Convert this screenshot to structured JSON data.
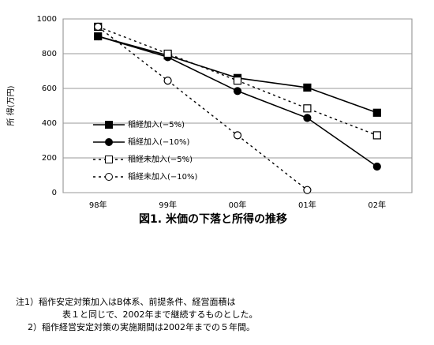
{
  "chart_data": {
    "type": "line",
    "title": "図1. 米価の下落と所得の推移",
    "y_label": "所 得(万円)",
    "categories": [
      "98年",
      "99年",
      "00年",
      "01年",
      "02年"
    ],
    "series": [
      {
        "name": "稲経加入(−5%)",
        "color": "#000000",
        "marker": "square",
        "filled": true,
        "line_style": "solid",
        "values": [
          900,
          790,
          660,
          605,
          460
        ]
      },
      {
        "name": "稲経加入(−10%)",
        "color": "#000000",
        "marker": "circle",
        "filled": true,
        "line_style": "solid",
        "values": [
          900,
          780,
          585,
          430,
          150
        ]
      },
      {
        "name": "稲経未加入(−5%)",
        "color": "#000000",
        "marker": "square",
        "filled": false,
        "line_style": "dotted",
        "values": [
          955,
          800,
          645,
          485,
          330
        ]
      },
      {
        "name": "稲経未加入(−10%)",
        "color": "#000000",
        "marker": "circle",
        "filled": false,
        "line_style": "dotted",
        "values": [
          955,
          645,
          330,
          15,
          null
        ]
      }
    ],
    "ylim": [
      0,
      1000
    ],
    "yticks": [
      0,
      200,
      400,
      600,
      800,
      1000
    ],
    "grid": true
  },
  "notes": [
    "注1）稲作安定対策加入はB体系、前提条件、経営面積は",
    "表１と同じで、2002年まで継続するものとした。",
    "2）稲作経営安定対策の実施期間は2002年までの５年間。"
  ]
}
